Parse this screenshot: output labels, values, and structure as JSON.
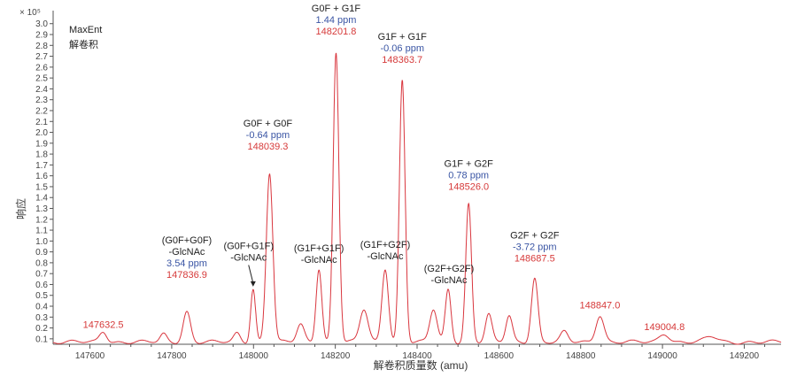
{
  "chart_data": {
    "type": "line",
    "title": "",
    "scale_label": "× 10⁵",
    "ylabel": "响应",
    "xlabel": "解卷积质量数 (amu)",
    "info_lines": [
      "MaxEnt",
      "解卷积"
    ],
    "xlim": [
      147510,
      149290
    ],
    "ylim": [
      0.05,
      3.12
    ],
    "x_ticks": [
      147600,
      147800,
      148000,
      148200,
      148400,
      148600,
      148800,
      149000,
      149200
    ],
    "y_ticks": [
      0.1,
      0.2,
      0.3,
      0.4,
      0.5,
      0.6,
      0.7,
      0.8,
      0.9,
      1.0,
      1.1,
      1.2,
      1.3,
      1.4,
      1.5,
      1.6,
      1.7,
      1.8,
      1.9,
      2.0,
      2.1,
      2.2,
      2.3,
      2.4,
      2.5,
      2.6,
      2.7,
      2.8,
      2.9,
      3.0
    ],
    "series_color": "#d9363e",
    "baseline": 0.07,
    "peaks": [
      {
        "x": 147632.5,
        "y": 0.17,
        "w": 9
      },
      {
        "x": 147780,
        "y": 0.14,
        "w": 8
      },
      {
        "x": 147836.9,
        "y": 0.35,
        "w": 9
      },
      {
        "x": 147960,
        "y": 0.15,
        "w": 8
      },
      {
        "x": 147999,
        "y": 0.56,
        "w": 6
      },
      {
        "x": 148039.3,
        "y": 1.63,
        "w": 8
      },
      {
        "x": 148115,
        "y": 0.23,
        "w": 9
      },
      {
        "x": 148160,
        "y": 0.75,
        "w": 7
      },
      {
        "x": 148201.8,
        "y": 2.74,
        "w": 7
      },
      {
        "x": 148270,
        "y": 0.37,
        "w": 10
      },
      {
        "x": 148322,
        "y": 0.75,
        "w": 8
      },
      {
        "x": 148363.7,
        "y": 2.48,
        "w": 7
      },
      {
        "x": 148440,
        "y": 0.37,
        "w": 9
      },
      {
        "x": 148476,
        "y": 0.55,
        "w": 7
      },
      {
        "x": 148526.0,
        "y": 1.34,
        "w": 7
      },
      {
        "x": 148575,
        "y": 0.32,
        "w": 8
      },
      {
        "x": 148625,
        "y": 0.31,
        "w": 8
      },
      {
        "x": 148687.5,
        "y": 0.66,
        "w": 8
      },
      {
        "x": 148760,
        "y": 0.16,
        "w": 9
      },
      {
        "x": 148847.0,
        "y": 0.32,
        "w": 10
      },
      {
        "x": 149004.8,
        "y": 0.15,
        "w": 12
      },
      {
        "x": 149120,
        "y": 0.12,
        "w": 15
      }
    ],
    "annotations": [
      {
        "lines": [
          {
            "text": "(G0F+G0F)",
            "kind": "name"
          },
          {
            "text": "-GlcNAc",
            "kind": "name"
          },
          {
            "text": "3.54 ppm",
            "kind": "ppm"
          },
          {
            "text": "147836.9",
            "kind": "mass"
          }
        ],
        "x": 147836.9,
        "y": 0.66
      },
      {
        "lines": [
          {
            "text": "(G0F+G1F)",
            "kind": "name"
          },
          {
            "text": "-GlcNAc",
            "kind": "name"
          }
        ],
        "x": 147988,
        "y": 0.82,
        "arrow_to": [
          147999,
          0.58
        ]
      },
      {
        "lines": [
          {
            "text": "G0F + G0F",
            "kind": "name"
          },
          {
            "text": "-0.64 ppm",
            "kind": "ppm"
          },
          {
            "text": "148039.3",
            "kind": "mass"
          }
        ],
        "x": 148035,
        "y": 1.84
      },
      {
        "lines": [
          {
            "text": "(G1F+G1F)",
            "kind": "name"
          },
          {
            "text": "-GlcNAc",
            "kind": "name"
          }
        ],
        "x": 148160,
        "y": 0.8
      },
      {
        "lines": [
          {
            "text": "G0F + G1F",
            "kind": "name"
          },
          {
            "text": "1.44 ppm",
            "kind": "ppm"
          },
          {
            "text": "148201.8",
            "kind": "mass"
          }
        ],
        "x": 148201.8,
        "y": 2.9
      },
      {
        "lines": [
          {
            "text": "(G1F+G2F)",
            "kind": "name"
          },
          {
            "text": "-GlcNAc",
            "kind": "name"
          }
        ],
        "x": 148322,
        "y": 0.83
      },
      {
        "lines": [
          {
            "text": "G1F + G1F",
            "kind": "name"
          },
          {
            "text": "-0.06 ppm",
            "kind": "ppm"
          },
          {
            "text": "148363.7",
            "kind": "mass"
          }
        ],
        "x": 148363.7,
        "y": 2.64
      },
      {
        "lines": [
          {
            "text": "(G2F+G2F)",
            "kind": "name"
          },
          {
            "text": "-GlcNAc",
            "kind": "name"
          }
        ],
        "x": 148478,
        "y": 0.61
      },
      {
        "lines": [
          {
            "text": "G1F + G2F",
            "kind": "name"
          },
          {
            "text": "0.78 ppm",
            "kind": "ppm"
          },
          {
            "text": "148526.0",
            "kind": "mass"
          }
        ],
        "x": 148526.0,
        "y": 1.47
      },
      {
        "lines": [
          {
            "text": "G2F + G2F",
            "kind": "name"
          },
          {
            "text": "-3.72 ppm",
            "kind": "ppm"
          },
          {
            "text": "148687.5",
            "kind": "mass"
          }
        ],
        "x": 148687.5,
        "y": 0.81
      },
      {
        "lines": [
          {
            "text": "147632.5",
            "kind": "mass"
          }
        ],
        "x": 147632.5,
        "y": 0.2
      },
      {
        "lines": [
          {
            "text": "148847.0",
            "kind": "mass"
          }
        ],
        "x": 148847.0,
        "y": 0.38
      },
      {
        "lines": [
          {
            "text": "149004.8",
            "kind": "mass"
          }
        ],
        "x": 149004.8,
        "y": 0.18
      }
    ]
  }
}
